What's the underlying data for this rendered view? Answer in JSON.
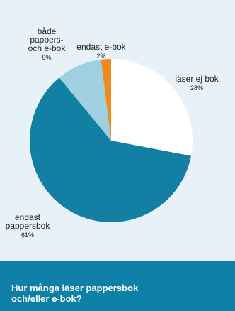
{
  "chart_data": {
    "type": "pie",
    "title": "Hur många läser pappersbok\noch/eller e-bok?",
    "slices": [
      {
        "label": "läser ej bok",
        "value": 28,
        "display": "28%",
        "color": "#ffffff"
      },
      {
        "label": "endast pappersbok",
        "value": 61,
        "display": "61%",
        "color": "#127fa3"
      },
      {
        "label": "både pappers- och e-bok",
        "value": 9,
        "display": "9%",
        "color": "#9fd0e0"
      },
      {
        "label": "endast e-bok",
        "value": 2,
        "display": "2%",
        "color": "#f08a1e"
      }
    ],
    "label_lines": [
      [
        "läser ej bok"
      ],
      [
        "endast",
        "pappersbok"
      ],
      [
        "både",
        "pappers-",
        "och e-bok"
      ],
      [
        "endast e-bok"
      ]
    ]
  },
  "colors": {
    "background": "#e6f1f8",
    "footer": "#0e7fa6"
  }
}
